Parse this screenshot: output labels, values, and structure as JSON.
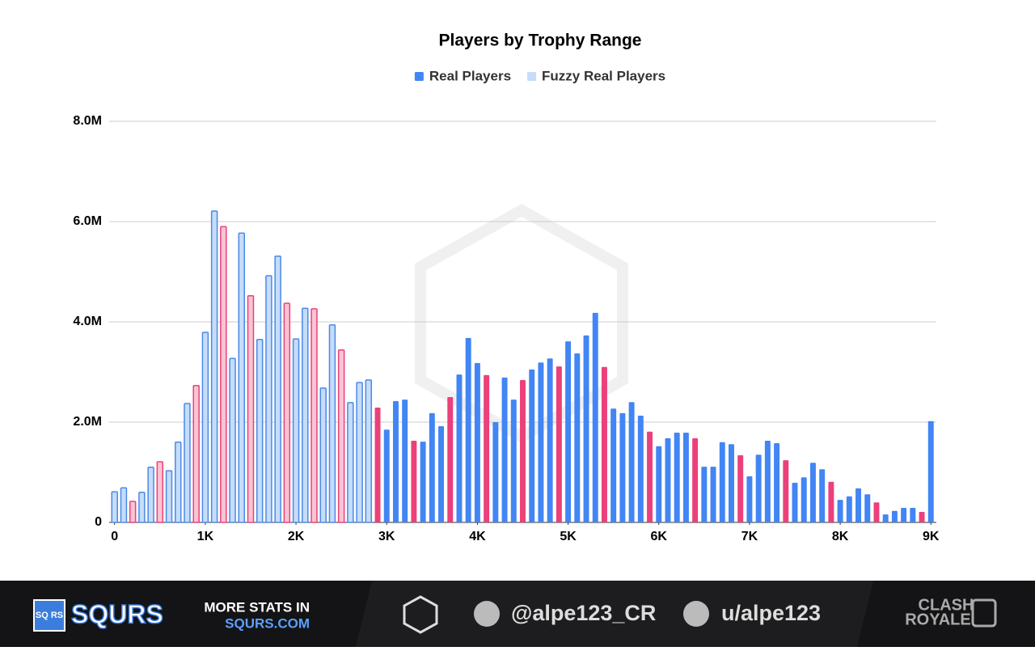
{
  "chart_data": {
    "type": "bar",
    "title": "Players by Trophy Range",
    "x": [
      0,
      100,
      200,
      300,
      400,
      500,
      600,
      700,
      800,
      900,
      1000,
      1100,
      1200,
      1300,
      1400,
      1500,
      1600,
      1700,
      1800,
      1900,
      2000,
      2100,
      2200,
      2300,
      2400,
      2500,
      2600,
      2700,
      2800,
      2900,
      3000,
      3100,
      3200,
      3300,
      3400,
      3500,
      3600,
      3700,
      3800,
      3900,
      4000,
      4100,
      4200,
      4300,
      4400,
      4500,
      4600,
      4700,
      4800,
      4900,
      5000,
      5100,
      5200,
      5300,
      5400,
      5500,
      5600,
      5700,
      5800,
      5900,
      6000,
      6100,
      6200,
      6300,
      6400,
      6500,
      6600,
      6700,
      6800,
      6900,
      7000,
      7100,
      7200,
      7300,
      7400,
      7500,
      7600,
      7700,
      7800,
      7900,
      8000,
      8100,
      8200,
      8300,
      8400,
      8500,
      8600,
      8700,
      8800,
      8900,
      9000
    ],
    "series": [
      {
        "name": "Real Players",
        "color": "#4285f4",
        "fill": "#4285f4",
        "values": [
          null,
          null,
          null,
          null,
          null,
          null,
          null,
          null,
          null,
          null,
          null,
          null,
          null,
          null,
          null,
          null,
          null,
          null,
          null,
          null,
          null,
          null,
          null,
          null,
          null,
          null,
          null,
          null,
          null,
          2290000,
          1850000,
          2420000,
          2450000,
          1630000,
          1610000,
          2180000,
          1920000,
          2500000,
          2950000,
          3680000,
          3180000,
          2940000,
          2000000,
          2890000,
          2450000,
          2840000,
          3050000,
          3190000,
          3270000,
          3110000,
          3610000,
          3370000,
          3730000,
          4180000,
          3100000,
          2270000,
          2180000,
          2400000,
          2130000,
          1810000,
          1520000,
          1680000,
          1790000,
          1790000,
          1680000,
          1110000,
          1110000,
          1600000,
          1560000,
          1340000,
          920000,
          1350000,
          1630000,
          1580000,
          1240000,
          790000,
          900000,
          1190000,
          1060000,
          810000,
          450000,
          520000,
          680000,
          560000,
          400000,
          160000,
          230000,
          290000,
          290000,
          210000,
          2020000
        ]
      },
      {
        "name": "Fuzzy Real Players",
        "color": "#4a8ae8",
        "fill": "#c6dcf8",
        "values": [
          610000,
          690000,
          420000,
          600000,
          1100000,
          1210000,
          1030000,
          1600000,
          2370000,
          2730000,
          3790000,
          6210000,
          5900000,
          3270000,
          5770000,
          4520000,
          3650000,
          4920000,
          5310000,
          4370000,
          3660000,
          4270000,
          4260000,
          2680000,
          3940000,
          3440000,
          2390000,
          2790000,
          2840000,
          null,
          null,
          null,
          null,
          null,
          null,
          null,
          null,
          null,
          null,
          null,
          null,
          null,
          null,
          null,
          null,
          null,
          null,
          null,
          null,
          null,
          null,
          null,
          null,
          null,
          null,
          null,
          null,
          null,
          null,
          null,
          null,
          null,
          null,
          null,
          null,
          null,
          null,
          null,
          null,
          null,
          null,
          null,
          null,
          null,
          null,
          null,
          null,
          null,
          null,
          null,
          null,
          null,
          null,
          null,
          null,
          null,
          null,
          null,
          null,
          null,
          null
        ]
      }
    ],
    "highlight": {
      "color": "#ec407a",
      "fill": "#f8c5d4",
      "x": [
        200,
        500,
        900,
        1200,
        1500,
        1900,
        2200,
        2500,
        2900,
        3300,
        3700,
        4100,
        4500,
        4900,
        5400,
        5900,
        6400,
        6900,
        7400,
        7900,
        8400,
        8900
      ]
    },
    "xlim": [
      -60,
      9060
    ],
    "xticks": [
      0,
      {
        "value": 1000,
        "label": "1K"
      },
      {
        "value": 2000,
        "label": "2K"
      },
      {
        "value": 3000,
        "label": "3K"
      },
      {
        "value": 4000,
        "label": "4K"
      },
      {
        "value": 5000,
        "label": "5K"
      },
      {
        "value": 6000,
        "label": "6K"
      },
      {
        "value": 7000,
        "label": "7K"
      },
      {
        "value": 8000,
        "label": "8K"
      },
      {
        "value": 9000,
        "label": "9K"
      }
    ],
    "ylim": [
      0,
      8000000
    ],
    "yticks": [
      0,
      {
        "value": 2000000,
        "label": "2.0M"
      },
      {
        "value": 4000000,
        "label": "4.0M"
      },
      {
        "value": 6000000,
        "label": "6.0M"
      },
      {
        "value": 8000000,
        "label": "8.0M"
      }
    ],
    "grid": true
  },
  "footer": {
    "logo_small": "SQ RS",
    "brand": "SQURS",
    "promo_line1": "MORE STATS IN",
    "promo_line2": "SQURS.COM",
    "twitter": "@alpe123_CR",
    "reddit": "u/alpe123",
    "game_line1": "CLASH",
    "game_line2": "ROYALE"
  }
}
